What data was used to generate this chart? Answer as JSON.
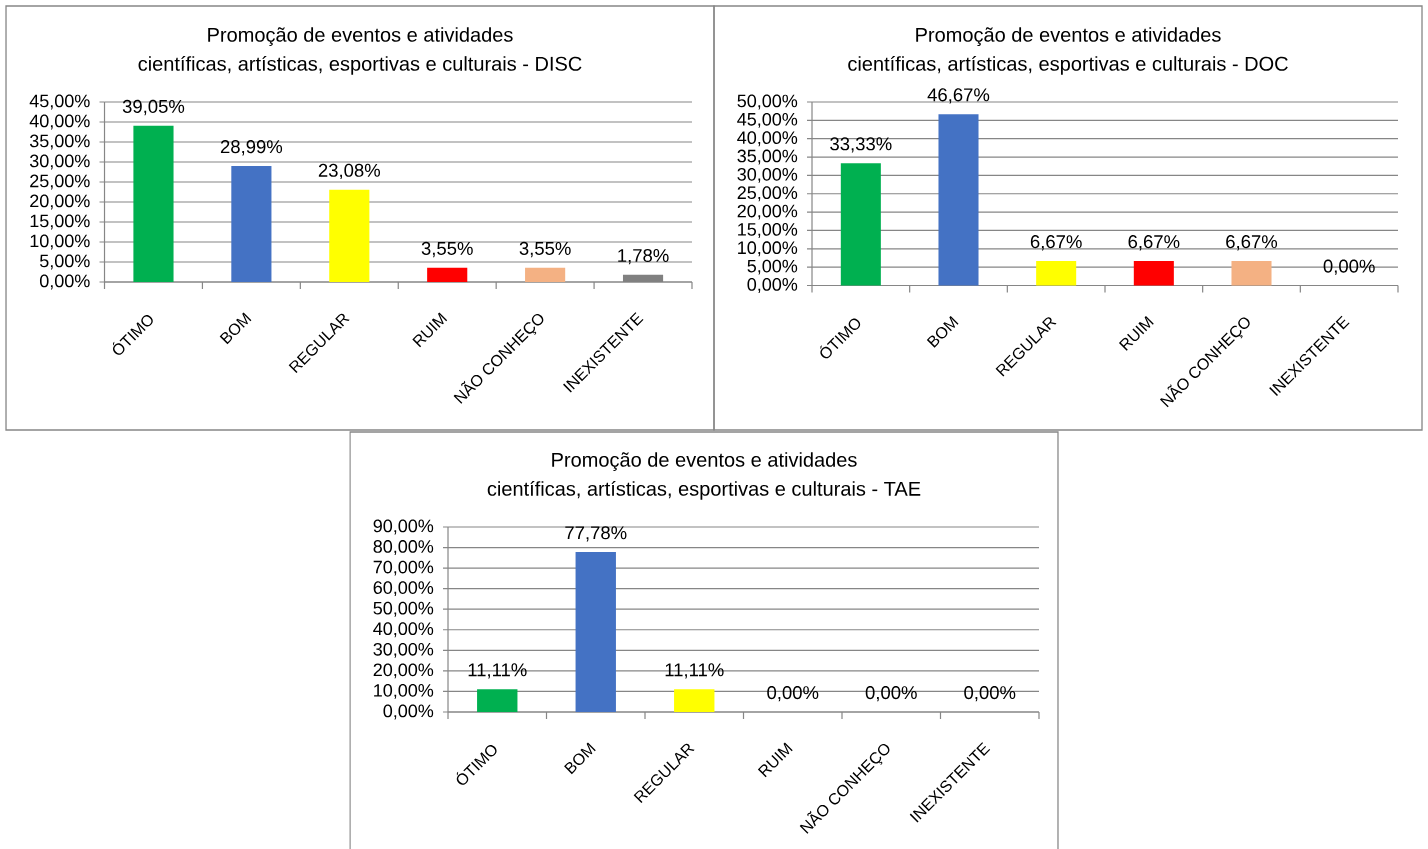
{
  "chart_data": [
    {
      "type": "bar",
      "title": "Promoção de eventos e atividades científicas, artísticas, esportivas e culturais - DISC",
      "categories": [
        "ÓTIMO",
        "BOM",
        "REGULAR",
        "RUIM",
        "NÃO CONHEÇO",
        "INEXISTENTE"
      ],
      "values": [
        39.05,
        28.99,
        23.08,
        3.55,
        3.55,
        1.78
      ],
      "colors": [
        "#00b050",
        "#4472c4",
        "#ffff00",
        "#ff0000",
        "#f4b183",
        "#808080"
      ],
      "value_labels": [
        "39,05%",
        "28,99%",
        "23,08%",
        "3,55%",
        "3,55%",
        "1,78%"
      ],
      "ylim": [
        0,
        45
      ],
      "yticks": [
        {
          "value": 0,
          "label": "0,00%"
        },
        {
          "value": 5,
          "label": "5,00%"
        },
        {
          "value": 10,
          "label": "10,00%"
        },
        {
          "value": 15,
          "label": "15,00%"
        },
        {
          "value": 20,
          "label": "20,00%"
        },
        {
          "value": 25,
          "label": "25,00%"
        },
        {
          "value": 30,
          "label": "30,00%"
        },
        {
          "value": 35,
          "label": "35,00%"
        },
        {
          "value": 40,
          "label": "40,00%"
        },
        {
          "value": 45,
          "label": "45,00%"
        }
      ],
      "grid": "y"
    },
    {
      "type": "bar",
      "title": "Promoção de eventos e atividades científicas, artísticas, esportivas e culturais - DOC",
      "categories": [
        "ÓTIMO",
        "BOM",
        "REGULAR",
        "RUIM",
        "NÃO CONHEÇO",
        "INEXISTENTE"
      ],
      "values": [
        33.33,
        46.67,
        6.67,
        6.67,
        6.67,
        0
      ],
      "colors": [
        "#00b050",
        "#4472c4",
        "#ffff00",
        "#ff0000",
        "#f4b183",
        null
      ],
      "value_labels": [
        "33,33%",
        "46,67%",
        "6,67%",
        "6,67%",
        "6,67%",
        "0,00%"
      ],
      "ylim": [
        0,
        50
      ],
      "yticks": [
        {
          "value": 0,
          "label": "0,00%"
        },
        {
          "value": 5,
          "label": "5,00%"
        },
        {
          "value": 10,
          "label": "10,00%"
        },
        {
          "value": 15,
          "label": "15,00%"
        },
        {
          "value": 20,
          "label": "20,00%"
        },
        {
          "value": 25,
          "label": "25,00%"
        },
        {
          "value": 30,
          "label": "30,00%"
        },
        {
          "value": 35,
          "label": "35,00%"
        },
        {
          "value": 40,
          "label": "40,00%"
        },
        {
          "value": 45,
          "label": "45,00%"
        },
        {
          "value": 50,
          "label": "50,00%"
        }
      ],
      "grid": "y"
    },
    {
      "type": "bar",
      "title": "Promoção de eventos e atividades científicas, artísticas, esportivas e culturais - TAE",
      "categories": [
        "ÓTIMO",
        "BOM",
        "REGULAR",
        "RUIM",
        "NÃO CONHEÇO",
        "INEXISTENTE"
      ],
      "values": [
        11.11,
        77.78,
        11.11,
        0,
        0,
        0
      ],
      "colors": [
        "#00b050",
        "#4472c4",
        "#ffff00",
        null,
        null,
        null
      ],
      "value_labels": [
        "11,11%",
        "77,78%",
        "11,11%",
        "0,00%",
        "0,00%",
        "0,00%"
      ],
      "ylim": [
        0,
        90
      ],
      "yticks": [
        {
          "value": 0,
          "label": "0,00%"
        },
        {
          "value": 10,
          "label": "10,00%"
        },
        {
          "value": 20,
          "label": "20,00%"
        },
        {
          "value": 30,
          "label": "30,00%"
        },
        {
          "value": 40,
          "label": "40,00%"
        },
        {
          "value": 50,
          "label": "50,00%"
        },
        {
          "value": 60,
          "label": "60,00%"
        },
        {
          "value": 70,
          "label": "70,00%"
        },
        {
          "value": 80,
          "label": "80,00%"
        },
        {
          "value": 90,
          "label": "90,00%"
        }
      ],
      "grid": "y"
    }
  ]
}
